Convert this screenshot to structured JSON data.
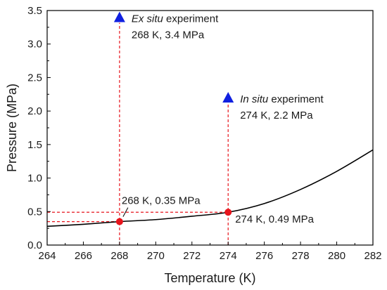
{
  "chart_data": {
    "type": "line",
    "title": "",
    "xlabel": "Temperature (K)",
    "ylabel": "Pressure (MPa)",
    "xlim": [
      264,
      282
    ],
    "ylim": [
      0.0,
      3.5
    ],
    "xticks": [
      264,
      266,
      268,
      270,
      272,
      274,
      276,
      278,
      280,
      282
    ],
    "xtick_labels": [
      "264",
      "266",
      "268",
      "270",
      "272",
      "274",
      "276",
      "278",
      "280",
      "282"
    ],
    "yticks": [
      0.0,
      0.5,
      1.0,
      1.5,
      2.0,
      2.5,
      3.0,
      3.5
    ],
    "ytick_labels": [
      "0.0",
      "0.5",
      "1.0",
      "1.5",
      "2.0",
      "2.5",
      "3.0",
      "3.5"
    ],
    "grid": false,
    "series": [
      {
        "style": "solid",
        "color": "#000000",
        "x": [
          264,
          266,
          268,
          270,
          272,
          274,
          276,
          278,
          280,
          282
        ],
        "y": [
          0.28,
          0.31,
          0.35,
          0.38,
          0.43,
          0.49,
          0.62,
          0.83,
          1.1,
          1.42
        ]
      }
    ],
    "points": [
      {
        "marker": "circle",
        "color": "#e8141c",
        "x": 268,
        "y": 0.35
      },
      {
        "marker": "circle",
        "color": "#e8141c",
        "x": 274,
        "y": 0.49
      },
      {
        "marker": "triangle",
        "color": "#1020e0",
        "x": 268,
        "y": 3.4
      },
      {
        "marker": "triangle",
        "color": "#1020e0",
        "x": 274,
        "y": 2.2
      }
    ],
    "annotations": {
      "ex_situ_italic": "Ex situ",
      "ex_situ_rest": " experiment",
      "ex_situ_values": "268 K, 3.4 MPa",
      "in_situ_italic": "In situ",
      "in_situ_rest": " experiment",
      "in_situ_values": "274 K,  2.2 MPa",
      "point_268": "268 K, 0.35 MPa",
      "point_274": "274 K,  0.49 MPa"
    },
    "colors": {
      "guide_lines": "#e8141c",
      "curve": "#000000"
    }
  }
}
